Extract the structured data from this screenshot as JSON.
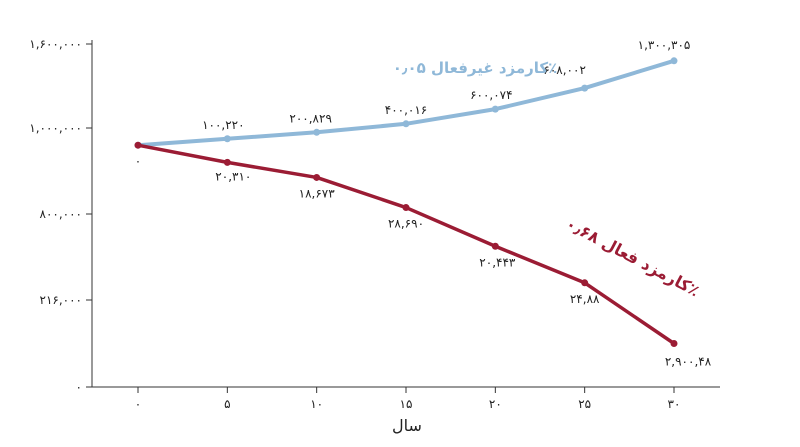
{
  "chart_data": {
    "type": "line",
    "xlabel": "سال",
    "x": [
      0,
      5,
      10,
      15,
      20,
      25,
      30
    ],
    "x_tick_labels": [
      "۰",
      "۵",
      "۱۰",
      "۱۵",
      "۲۰",
      "۲۵",
      "۳۰"
    ],
    "y_tick_labels": [
      "۱,۶۰۰,۰۰۰",
      "۱,۰۰۰,۰۰۰",
      "۸۰۰,۰۰۰",
      "۲۱۶,۰۰۰",
      "۰"
    ],
    "series": [
      {
        "name": "کارمزد غیرفعال ۰٫۰۵٪",
        "color": "#8fb8d8",
        "values": [
          960000,
          975000,
          990000,
          1010000,
          1045000,
          1095000,
          1160000
        ],
        "point_labels": [
          "۰",
          "۱۰۰,۲۲۰",
          "۲۰۰,۸۲۹",
          "۴۰۰,۰۱۶",
          "۶۰۰,۰۷۴",
          "۶۰۸,۰۰۲",
          "۱,۳۰۰,۳۰۵"
        ]
      },
      {
        "name": "کارمزد فعال ۰٫۶۸٪",
        "color": "#9b1c34",
        "values": [
          960000,
          920000,
          885000,
          815000,
          725000,
          640000,
          500000
        ],
        "point_labels": [
          "",
          "۲۰,۳۱۰",
          "۱۸,۶۷۳",
          "۲۸,۶۹۰",
          "۲۰,۴۴۳",
          "۲۴,۸۸",
          "۲,۹۰۰,۴۸"
        ]
      }
    ]
  }
}
